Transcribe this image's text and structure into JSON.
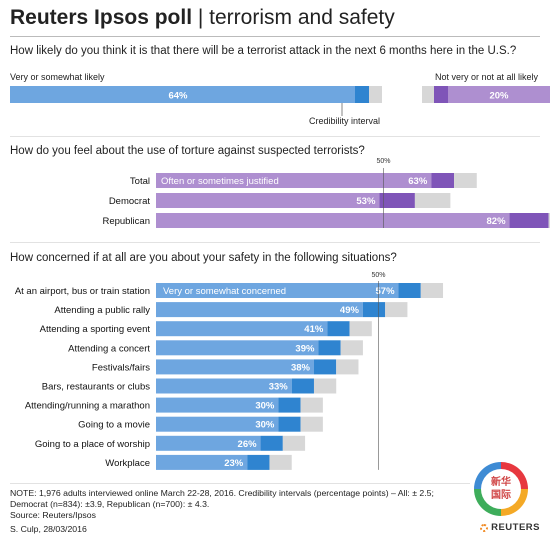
{
  "header": {
    "title_bold": "Reuters Ipsos poll",
    "title_rest": " | terrorism and safety"
  },
  "colors": {
    "blue": "#6ea6e0",
    "blue_ci": "#2f84d0",
    "purple": "#ae8fd0",
    "purple_ci": "#7f55b8",
    "grey_ci": "#d7d7d7"
  },
  "chart_data": [
    {
      "type": "bar",
      "title": "How likely do you think it is that there will be a terrorist attack in the next 6 months here in the U.S.?",
      "categories": [
        "Very or somewhat likely",
        "Not very or not at all likely"
      ],
      "values": [
        64,
        20
      ],
      "value_labels": [
        "64%",
        "20%"
      ],
      "annotation": "Credibility interval"
    },
    {
      "type": "bar",
      "title": "How do you feel about the use of torture against suspected terrorists?",
      "categories": [
        "Total",
        "Democrat",
        "Republican"
      ],
      "values": [
        63,
        53,
        82
      ],
      "value_labels": [
        "63%",
        "53%",
        "82%"
      ],
      "series_label": "Often or sometimes justified",
      "credibility_interval": [
        2.5,
        3.9,
        4.3
      ],
      "reference_label": "50%",
      "xlim": [
        0,
        100
      ]
    },
    {
      "type": "bar",
      "title": "How concerned if at all are you about your safety in the following situations?",
      "categories": [
        "At an airport, bus or train station",
        "Attending a public rally",
        "Attending a sporting event",
        "Attending a concert",
        "Festivals/fairs",
        "Bars, restaurants or clubs",
        "Attending/running a marathon",
        "Going to a movie",
        "Going to a place of worship",
        "Workplace"
      ],
      "values": [
        57,
        49,
        41,
        39,
        38,
        33,
        30,
        30,
        26,
        23
      ],
      "value_labels": [
        "57%",
        "49%",
        "41%",
        "39%",
        "38%",
        "33%",
        "30%",
        "30%",
        "26%",
        "23%"
      ],
      "series_label": "Very or somewhat concerned",
      "credibility_interval": 2.5,
      "reference_label": "50%",
      "xlim": [
        0,
        100
      ]
    }
  ],
  "footer": {
    "note1": "NOTE: 1,976 adults interviewed online March 22-28, 2016. Credibility intervals (percentage points) – All: ± 2.5;",
    "note2": "Democrat (n=834): ±3.9, Republican (n=700): ± 4.3.",
    "source": "Source:  Reuters/Ipsos",
    "credit": "S. Culp,  28/03/2016",
    "logo": "REUTERS",
    "watermark_line1": "新华",
    "watermark_line2": "国际"
  }
}
